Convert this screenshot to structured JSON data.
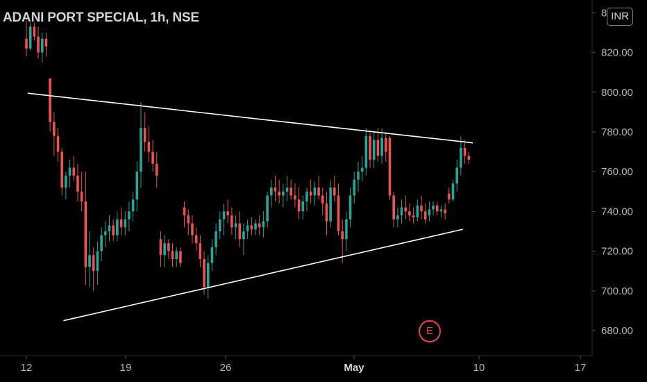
{
  "header": {
    "symbol_name": "ADANI PORT SPECIAL",
    "separator": ", ",
    "interval": "1h",
    "exchange": "NSE",
    "currency_badge": "INR"
  },
  "earnings_marker": {
    "label": "E"
  },
  "colors": {
    "up": "#26a69a",
    "down": "#ef5350",
    "trendline": "#ffffff",
    "background": "#000000",
    "earnings": "#e8464a"
  },
  "chart_data": {
    "type": "candlestick",
    "ylim": [
      670,
      845
    ],
    "y_ticks": [
      "680.00",
      "700.00",
      "720.00",
      "740.00",
      "760.00",
      "780.00",
      "800.00",
      "820.00",
      "840.00"
    ],
    "x_ticks": [
      {
        "label": "12",
        "bold": false
      },
      {
        "label": "19",
        "bold": false
      },
      {
        "label": "26",
        "bold": false
      },
      {
        "label": "May",
        "bold": true
      },
      {
        "label": "10",
        "bold": false
      },
      {
        "label": "17",
        "bold": false
      }
    ],
    "trendlines": [
      {
        "name": "upper",
        "from": [
          0.3,
          799.5
        ],
        "to": [
          113,
          774.5
        ]
      },
      {
        "name": "lower",
        "from": [
          9.4,
          685
        ],
        "to": [
          110.5,
          731
        ]
      }
    ],
    "candles": [
      [
        0,
        827,
        836,
        818,
        822
      ],
      [
        1,
        822,
        835,
        821,
        833
      ],
      [
        2,
        833,
        835,
        826,
        828
      ],
      [
        3,
        828,
        833,
        817,
        820
      ],
      [
        4,
        820,
        830,
        815,
        827
      ],
      [
        5,
        827,
        830,
        818,
        823
      ],
      [
        6,
        807,
        807,
        780,
        785
      ],
      [
        7,
        785,
        790,
        768,
        778
      ],
      [
        8,
        778,
        782,
        765,
        770
      ],
      [
        9,
        770,
        772,
        748,
        752
      ],
      [
        10,
        752,
        760,
        746,
        758
      ],
      [
        11,
        758,
        766,
        752,
        762
      ],
      [
        12,
        762,
        768,
        755,
        758
      ],
      [
        13,
        758,
        764,
        745,
        750
      ],
      [
        14,
        750,
        760,
        740,
        745
      ],
      [
        15,
        745,
        760,
        703,
        712
      ],
      [
        16,
        712,
        730,
        702,
        718
      ],
      [
        17,
        718,
        722,
        700,
        710
      ],
      [
        18,
        710,
        725,
        703,
        720
      ],
      [
        19,
        720,
        732,
        715,
        728
      ],
      [
        20,
        728,
        735,
        722,
        730
      ],
      [
        21,
        730,
        738,
        725,
        733
      ],
      [
        22,
        733,
        736,
        725,
        728
      ],
      [
        23,
        728,
        740,
        725,
        736
      ],
      [
        24,
        736,
        742,
        728,
        732
      ],
      [
        25,
        732,
        740,
        728,
        736
      ],
      [
        26,
        736,
        745,
        730,
        740
      ],
      [
        27,
        740,
        750,
        735,
        746
      ],
      [
        28,
        746,
        765,
        740,
        760
      ],
      [
        29,
        760,
        795,
        752,
        782
      ],
      [
        30,
        782,
        790,
        770,
        775
      ],
      [
        31,
        775,
        783,
        765,
        770
      ],
      [
        32,
        770,
        776,
        760,
        764
      ],
      [
        33,
        764,
        770,
        752,
        758
      ],
      [
        34,
        726,
        730,
        712,
        718
      ],
      [
        35,
        718,
        728,
        712,
        724
      ],
      [
        36,
        724,
        726,
        716,
        720
      ],
      [
        37,
        720,
        724,
        712,
        716
      ],
      [
        38,
        716,
        722,
        712,
        720
      ],
      [
        39,
        720,
        722,
        712,
        714
      ],
      [
        40,
        742,
        745,
        732,
        738
      ],
      [
        41,
        738,
        741,
        728,
        734
      ],
      [
        42,
        734,
        738,
        724,
        728
      ],
      [
        43,
        728,
        732,
        720,
        724
      ],
      [
        44,
        724,
        728,
        712,
        716
      ],
      [
        45,
        716,
        720,
        698,
        702
      ],
      [
        46,
        702,
        718,
        696,
        714
      ],
      [
        47,
        714,
        726,
        710,
        722
      ],
      [
        48,
        722,
        734,
        718,
        730
      ],
      [
        49,
        730,
        740,
        726,
        736
      ],
      [
        50,
        736,
        744,
        728,
        740
      ],
      [
        51,
        740,
        746,
        734,
        738
      ],
      [
        52,
        738,
        742,
        728,
        732
      ],
      [
        53,
        732,
        738,
        726,
        734
      ],
      [
        54,
        734,
        740,
        722,
        726
      ],
      [
        55,
        726,
        734,
        718,
        730
      ],
      [
        56,
        730,
        736,
        726,
        733
      ],
      [
        57,
        733,
        737,
        728,
        731
      ],
      [
        58,
        731,
        736,
        728,
        734
      ],
      [
        59,
        734,
        738,
        728,
        732
      ],
      [
        60,
        732,
        740,
        727,
        735
      ],
      [
        61,
        735,
        750,
        732,
        748
      ],
      [
        62,
        748,
        756,
        742,
        752
      ],
      [
        63,
        752,
        758,
        745,
        750
      ],
      [
        64,
        750,
        756,
        744,
        748
      ],
      [
        65,
        748,
        754,
        742,
        750
      ],
      [
        66,
        750,
        758,
        745,
        752
      ],
      [
        67,
        752,
        756,
        746,
        748
      ],
      [
        68,
        748,
        754,
        742,
        746
      ],
      [
        69,
        746,
        752,
        736,
        740
      ],
      [
        70,
        740,
        748,
        736,
        745
      ],
      [
        71,
        745,
        752,
        740,
        750
      ],
      [
        72,
        750,
        756,
        744,
        748
      ],
      [
        73,
        748,
        755,
        743,
        752
      ],
      [
        74,
        752,
        758,
        746,
        748
      ],
      [
        75,
        748,
        752,
        738,
        744
      ],
      [
        76,
        744,
        750,
        728,
        735
      ],
      [
        77,
        735,
        756,
        732,
        752
      ],
      [
        78,
        752,
        758,
        745,
        748
      ],
      [
        79,
        748,
        754,
        728,
        730
      ],
      [
        80,
        730,
        736,
        714,
        726
      ],
      [
        81,
        726,
        740,
        720,
        736
      ],
      [
        82,
        736,
        752,
        732,
        748
      ],
      [
        83,
        748,
        760,
        744,
        756
      ],
      [
        84,
        756,
        765,
        750,
        760
      ],
      [
        85,
        760,
        768,
        755,
        762
      ],
      [
        86,
        762,
        782,
        758,
        778
      ],
      [
        87,
        778,
        780,
        762,
        766
      ],
      [
        88,
        766,
        780,
        762,
        776
      ],
      [
        89,
        776,
        782,
        765,
        768
      ],
      [
        90,
        768,
        782,
        764,
        777
      ],
      [
        91,
        777,
        780,
        765,
        770
      ],
      [
        92,
        777,
        778,
        746,
        748
      ],
      [
        93,
        748,
        750,
        732,
        736
      ],
      [
        94,
        736,
        742,
        732,
        738
      ],
      [
        95,
        738,
        746,
        734,
        742
      ],
      [
        96,
        742,
        748,
        736,
        740
      ],
      [
        97,
        740,
        744,
        735,
        738
      ],
      [
        98,
        738,
        742,
        734,
        737
      ],
      [
        99,
        737,
        746,
        735,
        743
      ],
      [
        100,
        743,
        748,
        736,
        740
      ],
      [
        101,
        740,
        744,
        734,
        736
      ],
      [
        102,
        738,
        745,
        735,
        741
      ],
      [
        103,
        741,
        745,
        738,
        743
      ],
      [
        104,
        743,
        745,
        738,
        740
      ],
      [
        105,
        740,
        743,
        737,
        741
      ],
      [
        106,
        741,
        744,
        736,
        739
      ],
      [
        107,
        749,
        752,
        744,
        746
      ],
      [
        108,
        746,
        756,
        745,
        754
      ],
      [
        109,
        754,
        766,
        750,
        762
      ],
      [
        110,
        762,
        778,
        758,
        772
      ],
      [
        111,
        772,
        776,
        764,
        768
      ],
      [
        112,
        768,
        770,
        764,
        766
      ]
    ]
  }
}
